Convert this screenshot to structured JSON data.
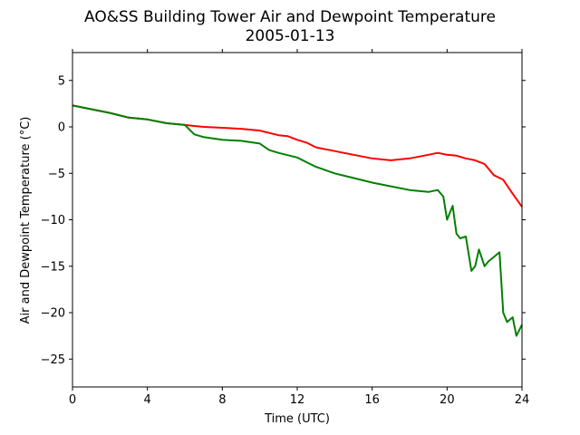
{
  "chart_data": {
    "type": "line",
    "title": "AO&SS Building Tower Air and Dewpoint Temperature",
    "subtitle": "2005-01-13",
    "xlabel": "Time (UTC)",
    "ylabel": "Air and Dewpoint Temperature (°C)",
    "xlim": [
      0,
      24
    ],
    "ylim": [
      -28,
      8
    ],
    "xticks": [
      0,
      4,
      8,
      12,
      16,
      20,
      24
    ],
    "yticks": [
      5,
      0,
      -5,
      -10,
      -15,
      -20,
      -25
    ],
    "ytick_labels": [
      "5",
      "0",
      "−5",
      "−10",
      "−15",
      "−20",
      "−25"
    ],
    "grid": false,
    "series": [
      {
        "color": "#ff0000",
        "x": [
          0,
          1,
          2,
          3,
          4,
          5,
          6,
          6.5,
          7,
          8,
          9,
          10,
          11,
          11.5,
          12,
          12.5,
          13,
          14,
          15,
          16,
          17,
          18,
          19,
          19.5,
          20,
          20.5,
          21,
          21.5,
          22,
          22.5,
          23,
          23.5,
          24
        ],
        "y": [
          2.3,
          1.9,
          1.5,
          1.0,
          0.8,
          0.4,
          0.2,
          0.1,
          0.0,
          -0.1,
          -0.2,
          -0.4,
          -0.9,
          -1.0,
          -1.4,
          -1.7,
          -2.2,
          -2.6,
          -3.0,
          -3.4,
          -3.6,
          -3.4,
          -3.0,
          -2.8,
          -3.0,
          -3.1,
          -3.4,
          -3.6,
          -4.0,
          -5.2,
          -5.7,
          -7.2,
          -8.6
        ]
      },
      {
        "color": "#008000",
        "x": [
          0,
          1,
          2,
          3,
          4,
          5,
          6,
          6.5,
          7,
          8,
          9,
          10,
          10.5,
          11,
          12,
          12.5,
          13,
          14,
          15,
          16,
          17,
          18,
          19,
          19.5,
          19.8,
          20,
          20.3,
          20.5,
          20.7,
          21,
          21.3,
          21.5,
          21.7,
          22,
          22.2,
          22.5,
          22.8,
          23,
          23.2,
          23.5,
          23.7,
          24
        ],
        "y": [
          2.3,
          1.9,
          1.5,
          1.0,
          0.8,
          0.4,
          0.2,
          -0.8,
          -1.1,
          -1.4,
          -1.5,
          -1.8,
          -2.5,
          -2.8,
          -3.3,
          -3.8,
          -4.3,
          -5.0,
          -5.5,
          -6.0,
          -6.4,
          -6.8,
          -7.0,
          -6.8,
          -7.5,
          -10.0,
          -8.5,
          -11.5,
          -12.0,
          -11.8,
          -15.5,
          -15.0,
          -13.2,
          -15.0,
          -14.5,
          -14.0,
          -13.5,
          -20.0,
          -21.0,
          -20.5,
          -22.5,
          -21.3
        ]
      }
    ]
  }
}
